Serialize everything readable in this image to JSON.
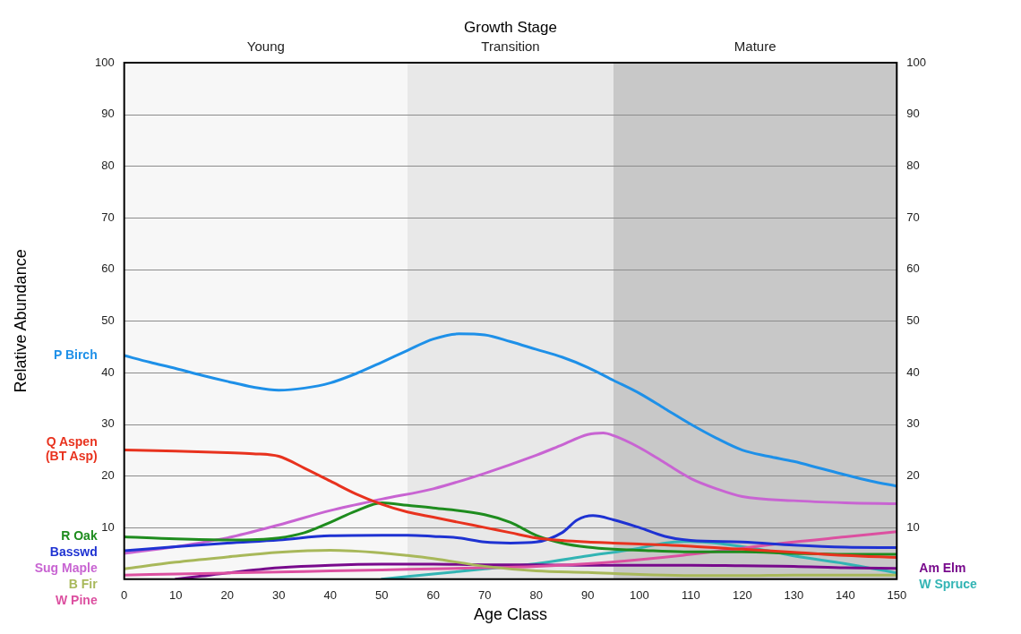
{
  "chart_data": {
    "type": "line",
    "xlabel": "Age Class",
    "ylabel": "Relative Abundance",
    "annotations": [
      "Growth Stage"
    ],
    "xlim": [
      0,
      150
    ],
    "xticks": [
      0,
      10,
      20,
      30,
      40,
      50,
      60,
      70,
      80,
      90,
      100,
      110,
      120,
      130,
      140,
      150
    ],
    "ylim": [
      0,
      100
    ],
    "yticks": [
      10,
      20,
      30,
      40,
      50,
      60,
      70,
      80,
      90,
      100
    ],
    "y2lim": [
      0,
      100
    ],
    "y2ticks": [
      10,
      20,
      30,
      40,
      50,
      60,
      70,
      80,
      90,
      100
    ],
    "grid": "y",
    "marker": "none",
    "line_style": "solid",
    "bands": [
      {
        "axis": "x",
        "from": 0,
        "to": 55,
        "label": "Young",
        "color": "#f7f7f7"
      },
      {
        "axis": "x",
        "from": 55,
        "to": 95,
        "label": "Transition",
        "color": "#e8e8e8"
      },
      {
        "axis": "x",
        "from": 95,
        "to": 150,
        "label": "Mature",
        "color": "#c8c8c8"
      }
    ],
    "series": [
      {
        "name": "P Birch",
        "color": "#1e90e8",
        "x": [
          0,
          5,
          10,
          15,
          20,
          25,
          30,
          35,
          40,
          45,
          50,
          55,
          60,
          65,
          70,
          75,
          80,
          85,
          90,
          95,
          100,
          105,
          110,
          115,
          120,
          125,
          130,
          135,
          140,
          145,
          150
        ],
        "values": [
          43.3,
          42,
          40.8,
          39.5,
          38.3,
          37.2,
          36.6,
          37,
          38,
          39.8,
          42,
          44.3,
          46.5,
          47.5,
          47.3,
          46,
          44.5,
          43,
          41,
          38.5,
          36,
          33,
          30,
          27.3,
          25,
          23.8,
          22.8,
          21.5,
          20.2,
          19,
          18
        ]
      },
      {
        "name": "Q Aspen (BT Asp)",
        "color": "#e8321e",
        "x": [
          0,
          10,
          20,
          25,
          30,
          35,
          40,
          45,
          50,
          55,
          60,
          65,
          70,
          75,
          80,
          85,
          90,
          95,
          100,
          110,
          120,
          130,
          140,
          150
        ],
        "values": [
          25,
          24.8,
          24.5,
          24.3,
          23.8,
          21.5,
          19,
          16.5,
          14.5,
          13,
          12,
          11,
          10,
          9,
          8,
          7.5,
          7.2,
          7,
          6.8,
          6.4,
          5.8,
          5.2,
          4.6,
          4.2
        ]
      },
      {
        "name": "R Oak",
        "color": "#1e8c1e",
        "x": [
          0,
          10,
          20,
          30,
          35,
          40,
          45,
          50,
          55,
          60,
          70,
          75,
          80,
          85,
          90,
          95,
          100,
          110,
          120,
          130,
          140,
          150
        ],
        "values": [
          8.2,
          7.8,
          7.6,
          8,
          9,
          11,
          13.2,
          14.8,
          14.3,
          13.8,
          12.5,
          11,
          8.5,
          7,
          6.2,
          5.8,
          5.6,
          5.3,
          5.3,
          5,
          4.8,
          4.8
        ]
      },
      {
        "name": "Basswd",
        "color": "#1e32d2",
        "x": [
          0,
          10,
          20,
          30,
          40,
          50,
          55,
          60,
          65,
          70,
          75,
          80,
          85,
          88,
          91,
          95,
          100,
          105,
          110,
          120,
          130,
          140,
          150
        ],
        "values": [
          5.5,
          6.3,
          7,
          7.6,
          8.4,
          8.5,
          8.5,
          8.3,
          8,
          7.2,
          7,
          7.2,
          9,
          11.5,
          12.3,
          11.5,
          10,
          8.3,
          7.5,
          7.2,
          6.6,
          6.2,
          6.1
        ]
      },
      {
        "name": "Sug Maple",
        "color": "#c864d2",
        "x": [
          0,
          10,
          20,
          30,
          40,
          50,
          60,
          70,
          80,
          85,
          90,
          93,
          95,
          100,
          105,
          110,
          115,
          120,
          130,
          140,
          150
        ],
        "values": [
          5,
          6.3,
          8,
          10.5,
          13.3,
          15.5,
          17.5,
          20.5,
          24,
          26,
          28,
          28.3,
          27.8,
          25.5,
          22.5,
          19.5,
          17.5,
          16,
          15.2,
          14.8,
          14.6
        ]
      },
      {
        "name": "B Fir",
        "color": "#a8b85a",
        "x": [
          0,
          10,
          20,
          30,
          40,
          50,
          55,
          60,
          70,
          80,
          90,
          100,
          110,
          120,
          130,
          140,
          150
        ],
        "values": [
          2,
          3.3,
          4.3,
          5.2,
          5.6,
          5.1,
          4.6,
          4,
          2.5,
          1.6,
          1.3,
          0.9,
          0.7,
          0.7,
          0.8,
          0.8,
          0.8
        ]
      },
      {
        "name": "W Pine",
        "color": "#dc50a0",
        "x": [
          0,
          10,
          20,
          30,
          40,
          50,
          60,
          70,
          80,
          90,
          100,
          110,
          120,
          130,
          140,
          150
        ],
        "values": [
          0.8,
          1,
          1.2,
          1.4,
          1.6,
          1.8,
          2,
          2.2,
          2.5,
          3,
          3.8,
          4.8,
          6,
          7.2,
          8.2,
          9.2
        ]
      },
      {
        "name": "Am Elm",
        "color": "#780a8c",
        "x": [
          10,
          15,
          20,
          30,
          40,
          50,
          60,
          70,
          80,
          90,
          100,
          110,
          120,
          130,
          140,
          150
        ],
        "values": [
          0,
          0.6,
          1.2,
          2.2,
          2.7,
          2.9,
          2.9,
          2.8,
          2.8,
          2.7,
          2.7,
          2.7,
          2.6,
          2.5,
          2.2,
          2.1
        ]
      },
      {
        "name": "W Spruce",
        "color": "#32b4b4",
        "x": [
          50,
          60,
          70,
          80,
          90,
          100,
          105,
          110,
          115,
          120,
          125,
          130,
          140,
          150
        ],
        "values": [
          0,
          1,
          2,
          3,
          4.5,
          6,
          7,
          7.3,
          7,
          6.3,
          5.5,
          4.5,
          3,
          1.2
        ]
      }
    ]
  }
}
